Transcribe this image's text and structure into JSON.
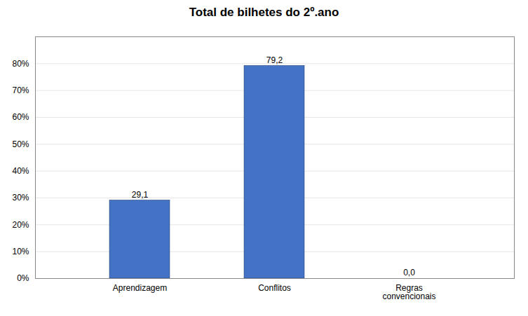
{
  "chart_data": {
    "type": "bar",
    "title": "Total de bilhetes do 2º.ano",
    "categories": [
      "Aprendizagem",
      "Conflitos",
      "Regras\nconvencionais"
    ],
    "values": [
      29.1,
      79.2,
      0.0
    ],
    "value_labels": [
      "29,1",
      "79,2",
      "0,0"
    ],
    "data_labels": true,
    "color": "#4472C4",
    "ylim": [
      0,
      90
    ],
    "yticks": [
      {
        "value": 0,
        "label": "0%"
      },
      {
        "value": 10,
        "label": "10%"
      },
      {
        "value": 20,
        "label": "20%"
      },
      {
        "value": 30,
        "label": "30%"
      },
      {
        "value": 40,
        "label": "40%"
      },
      {
        "value": 50,
        "label": "50%"
      },
      {
        "value": 60,
        "label": "60%"
      },
      {
        "value": 70,
        "label": "70%"
      },
      {
        "value": 80,
        "label": "80%"
      }
    ],
    "grid": true
  }
}
